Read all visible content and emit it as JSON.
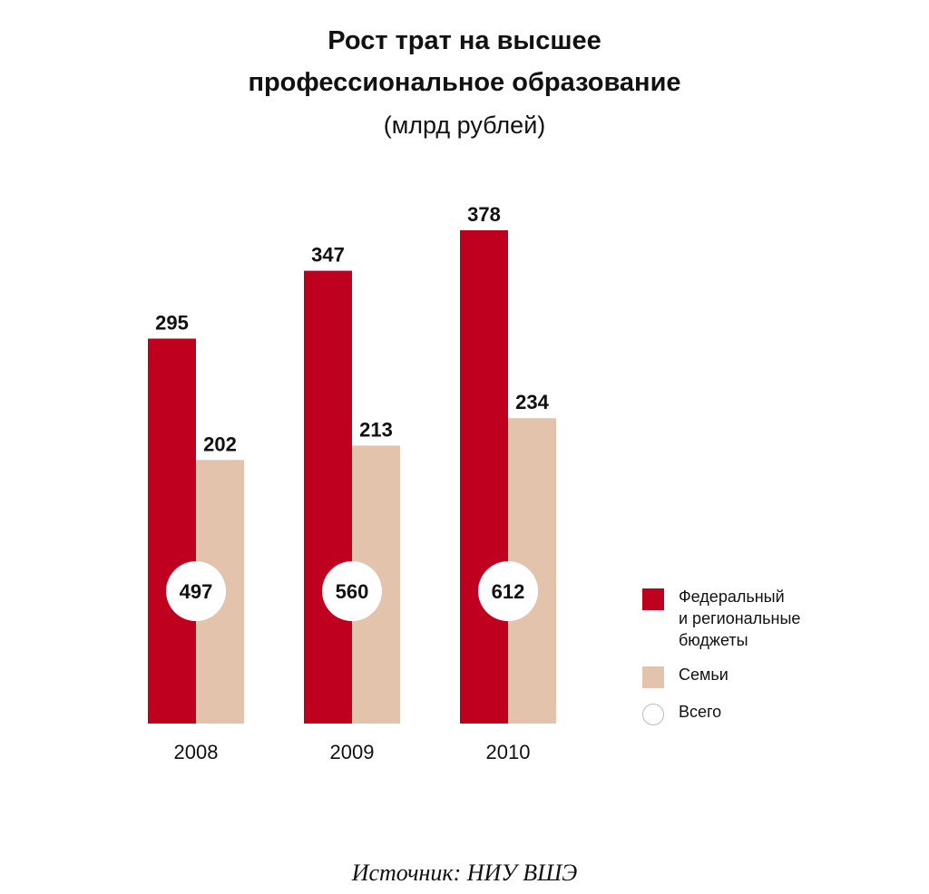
{
  "chart_data": {
    "type": "bar",
    "title_lines": [
      "Рост трат на высшее",
      "профессиональное образование"
    ],
    "subtitle": "(млрд рублей)",
    "categories": [
      "2008",
      "2009",
      "2010"
    ],
    "series": [
      {
        "name": "Федеральный\nи региональные\nбюджеты",
        "color": "#c0001f",
        "values": [
          295,
          347,
          378
        ]
      },
      {
        "name": "Семьи",
        "color": "#e4c3ad",
        "values": [
          202,
          213,
          234
        ]
      }
    ],
    "totals": {
      "name": "Всего",
      "values": [
        497,
        560,
        612
      ]
    },
    "ylim": [
      0,
      378
    ],
    "grid": false,
    "legend_position": "right"
  },
  "source": "Источник: НИУ ВШЭ"
}
